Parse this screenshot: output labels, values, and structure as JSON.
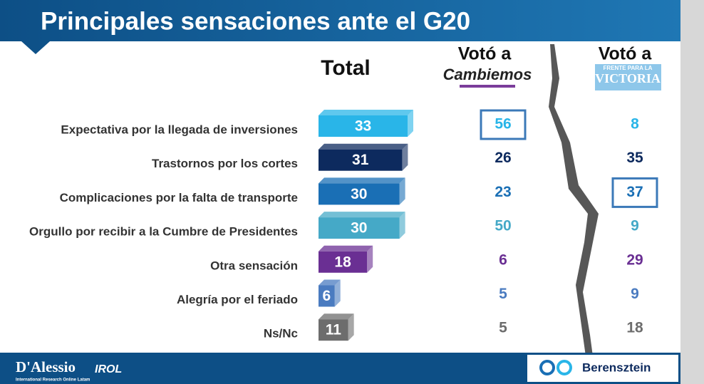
{
  "chart_data": {
    "type": "bar",
    "orientation": "horizontal",
    "title": "Principales sensaciones ante el G20",
    "categories": [
      "Expectativa por la llegada de inversiones",
      "Trastornos por los cortes",
      "Complicaciones por la falta de transporte",
      "Orgullo por recibir a la Cumbre de Presidentes",
      "Otra sensación",
      "Alegría por el feriado",
      "Ns/Nc"
    ],
    "row_colors": [
      "#29b5e8",
      "#0d2a5e",
      "#1a6fb5",
      "#45a9c7",
      "#6a2f93",
      "#4a7bc0",
      "#6d6d6d"
    ],
    "series": [
      {
        "name": "Total",
        "values": [
          33,
          31,
          30,
          30,
          18,
          6,
          11
        ]
      }
    ],
    "columns": [
      {
        "prefix": "Votó a",
        "name": "Cambiemos",
        "values": [
          56,
          26,
          23,
          50,
          6,
          5,
          5
        ],
        "highlight": 0
      },
      {
        "prefix": "Votó a",
        "subname": "FRENTE PARA LA",
        "name": "VICTORIA",
        "values": [
          8,
          35,
          37,
          9,
          29,
          9,
          18
        ],
        "highlight": 2
      }
    ],
    "footer_left": "D'Alessio",
    "footer_left_brand": "IROL",
    "footer_left_sub": "International Research Online Latam",
    "footer_right": "Berensztein"
  }
}
